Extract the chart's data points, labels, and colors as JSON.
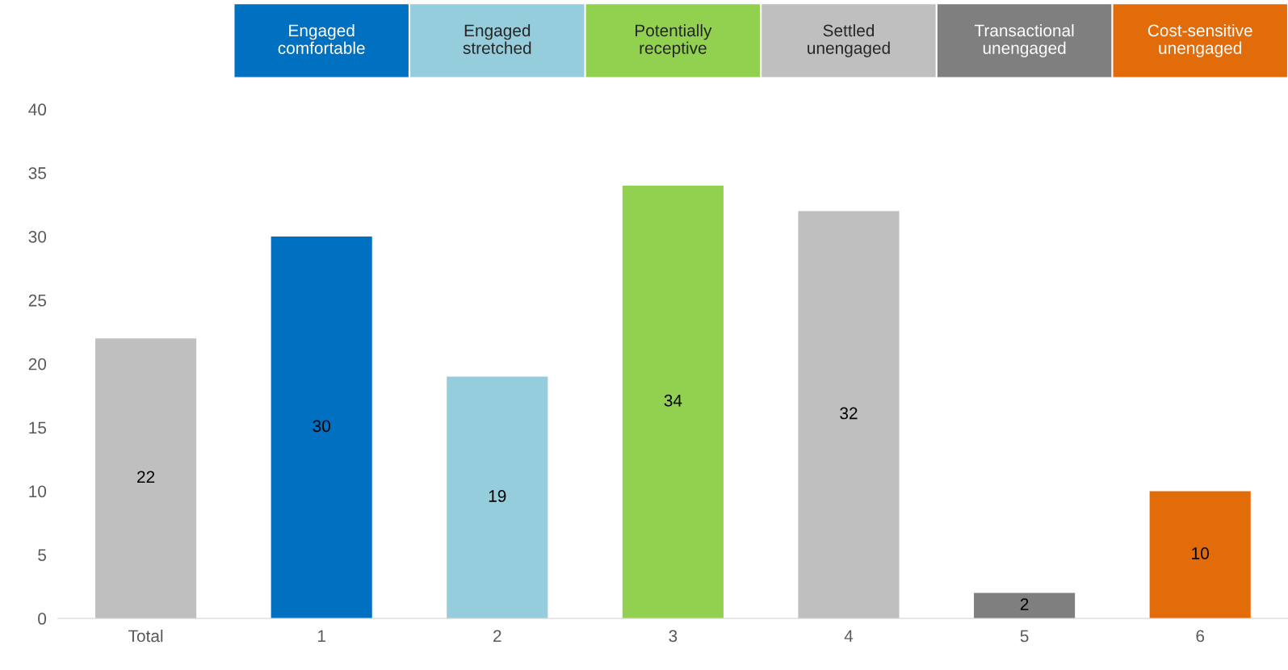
{
  "chart_data": {
    "type": "bar",
    "categories": [
      "Total",
      "1",
      "2",
      "3",
      "4",
      "5",
      "6"
    ],
    "values": [
      22,
      30,
      19,
      34,
      32,
      2,
      10
    ],
    "colors": [
      "#bfbfbf",
      "#0070c0",
      "#95cddd",
      "#92d050",
      "#bfbfbf",
      "#7f7f7f",
      "#e36c0a"
    ],
    "ylim": [
      0,
      40
    ],
    "yticks": [
      0,
      5,
      10,
      15,
      20,
      25,
      30,
      35,
      40
    ],
    "data_labels": true,
    "grid": false,
    "legend": false,
    "annotations": [
      "Engaged\ncomfortable",
      "Engaged\nstretched",
      "Potentially\nreceptive",
      "Settled\nunengaged",
      "Transactional\nunengaged",
      "Cost-sensitive\nunengaged"
    ]
  }
}
